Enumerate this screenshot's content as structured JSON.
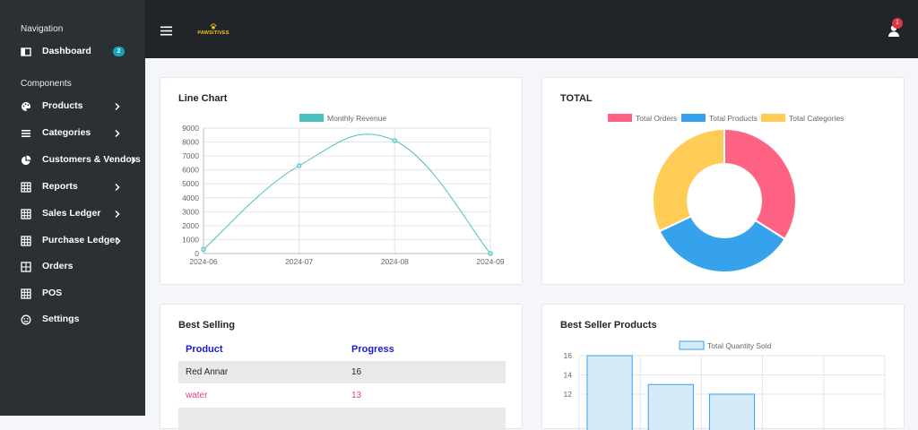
{
  "sidebar": {
    "heading_navigation": "Navigation",
    "heading_components": "Components",
    "dashboard": {
      "label": "Dashboard",
      "badge": "2",
      "icon": "dashboard-icon"
    },
    "items": [
      {
        "label": "Products",
        "icon": "palette-icon"
      },
      {
        "label": "Categories",
        "icon": "list-icon"
      },
      {
        "label": "Customers & Vendors",
        "icon": "pie-icon"
      },
      {
        "label": "Reports",
        "icon": "grid-icon"
      },
      {
        "label": "Sales Ledger",
        "icon": "grid-icon"
      },
      {
        "label": "Purchase Ledger",
        "icon": "grid-icon"
      },
      {
        "label": "Orders",
        "icon": "table-icon"
      },
      {
        "label": "POS",
        "icon": "grid-icon"
      },
      {
        "label": "Settings",
        "icon": "smile-icon"
      }
    ]
  },
  "topbar": {
    "logo_text": "PAWSITIVES",
    "notification_count": "1"
  },
  "line_card": {
    "title": "Line Chart",
    "chart_data": {
      "type": "line",
      "x": [
        "2024-06",
        "2024-07",
        "2024-08",
        "2024-09"
      ],
      "series": [
        {
          "name": "Monthly Revenue",
          "values": [
            300,
            6300,
            8100,
            0
          ]
        }
      ],
      "ylim": [
        0,
        9000
      ],
      "yticks": [
        "0",
        "1000",
        "2000",
        "3000",
        "4000",
        "5000",
        "6000",
        "7000",
        "8000",
        "9000"
      ],
      "legend": "top",
      "grid": true,
      "color": "#4bc0c0"
    }
  },
  "donut_card": {
    "title": "TOTAL",
    "chart_data": {
      "type": "pie",
      "categories": [
        "Total Orders",
        "Total Products",
        "Total Categories"
      ],
      "values": [
        34,
        34,
        32
      ],
      "colors": [
        "#ff6384",
        "#36a2eb",
        "#ffcd56"
      ],
      "legend": "top"
    }
  },
  "best_selling": {
    "title": "Best Selling",
    "col_product": "Product",
    "col_progress": "Progress",
    "rows": [
      {
        "product": "Red Annar",
        "progress": "16"
      },
      {
        "product": "water",
        "progress": "13"
      }
    ]
  },
  "best_seller_products": {
    "title": "Best Seller Products",
    "chart_data": {
      "type": "bar",
      "series": [
        {
          "name": "Total Quantity Sold",
          "values": [
            16,
            13,
            12
          ]
        }
      ],
      "ylim": [
        10,
        16
      ],
      "yticks": [
        "16",
        "14",
        "12"
      ],
      "legend": "top",
      "color": "#36a2eb"
    }
  }
}
